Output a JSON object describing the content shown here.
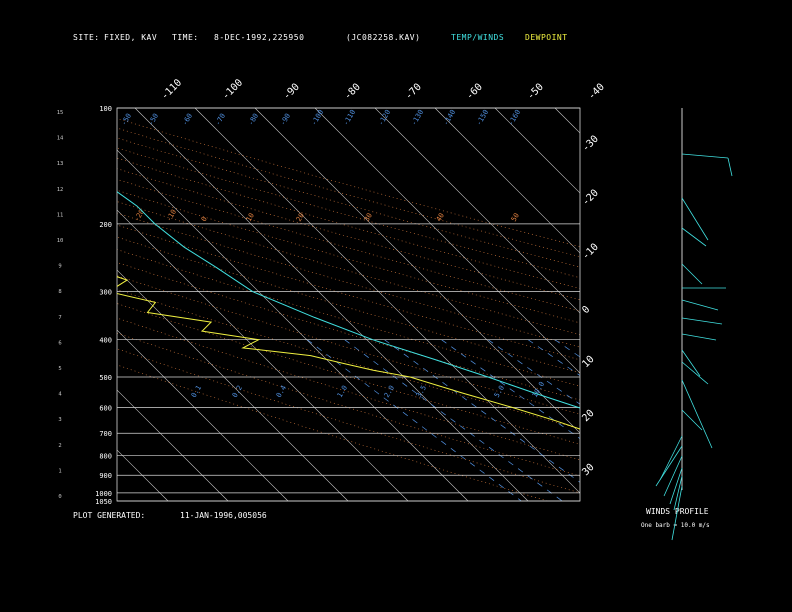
{
  "header": {
    "site_label": "SITE:",
    "site_value": "FIXED, KAV",
    "time_label": "TIME:",
    "time_value": "8-DEC-1992,225950",
    "file_id": "(JC082258.KAV)",
    "temp_winds": "TEMP/WINDS",
    "dewpoint": "DEWPOINT"
  },
  "footer": {
    "generated_label": "PLOT GENERATED:",
    "generated_value": "11-JAN-1996,005056"
  },
  "winds_panel": {
    "title": "WINDS PROFILE",
    "scale_note": "One barb = 10.0 m/s"
  },
  "colors": {
    "temp": "#40e0e0",
    "dewpoint": "#f0f040",
    "isotherm": "#c8c8c8",
    "dry_adiabat": "#e08040",
    "mixing_ratio": "#5090e0",
    "isobar": "#d8d8d8"
  },
  "chart_data": {
    "type": "line",
    "pressure_labels": [
      "100",
      "200",
      "300",
      "400",
      "500",
      "600",
      "700",
      "800",
      "900",
      "1000",
      "1050"
    ],
    "pressure_values": [
      100,
      200,
      300,
      400,
      500,
      600,
      700,
      800,
      900,
      1000,
      1050
    ],
    "height_km_ticks": [
      "15",
      "14",
      "13",
      "12",
      "11",
      "10",
      "9",
      "8",
      "7",
      "6",
      "5",
      "4",
      "3",
      "2",
      "1",
      "0"
    ],
    "top_temp_ticks": [
      "-110",
      "-100",
      "-90",
      "-80",
      "-70",
      "-60",
      "-50",
      "-40"
    ],
    "right_temp_ticks": [
      "-30",
      "-20",
      "-10",
      "0",
      "10",
      "20",
      "30"
    ],
    "adiabat_labels_top": [
      "-50",
      "-50",
      "-60",
      "-70",
      "-80",
      "-90",
      "-100",
      "-110",
      "-120",
      "-130",
      "-140",
      "-150",
      "-160"
    ],
    "adiabat_labels_mid": [
      "-20",
      "-10",
      "0",
      "10",
      "20",
      "30",
      "40",
      "50"
    ],
    "mixing_ratio_labels": [
      "0.1",
      "0.2",
      "0.4",
      "1.0",
      "2.0",
      "3.5",
      "5.0",
      "10.0"
    ],
    "xlabel": "",
    "ylabel": "",
    "series": [
      {
        "name": "TEMP/WINDS",
        "pressure": [
          100,
          120,
          150,
          180,
          200,
          230,
          260,
          300,
          350,
          400,
          450,
          500,
          550,
          600,
          650,
          700,
          750,
          800,
          850,
          900,
          950,
          980,
          1000,
          1010
        ],
        "temperature": [
          -63,
          -60,
          -58,
          -56,
          -56,
          -55,
          -53,
          -51,
          -45,
          -39,
          -32,
          -26,
          -21,
          -16,
          -12,
          -8,
          -5,
          -2,
          1,
          4,
          7,
          8,
          9,
          9
        ]
      },
      {
        "name": "DEWPOINT",
        "pressure": [
          100,
          120,
          150,
          180,
          200,
          220,
          240,
          260,
          280,
          300,
          320,
          340,
          360,
          380,
          400,
          420,
          440,
          460,
          480,
          500,
          550,
          600,
          650,
          700,
          750,
          800,
          850,
          900,
          950,
          980,
          1000,
          1010
        ],
        "temperature": [
          -80,
          -76,
          -73,
          -70,
          -71,
          -72,
          -71,
          -74,
          -70,
          -75,
          -69,
          -72,
          -63,
          -66,
          -58,
          -62,
          -52,
          -48,
          -44,
          -39,
          -33,
          -27,
          -22,
          -18,
          -14,
          -10,
          -6,
          -2,
          2,
          3,
          5,
          5
        ]
      }
    ]
  }
}
